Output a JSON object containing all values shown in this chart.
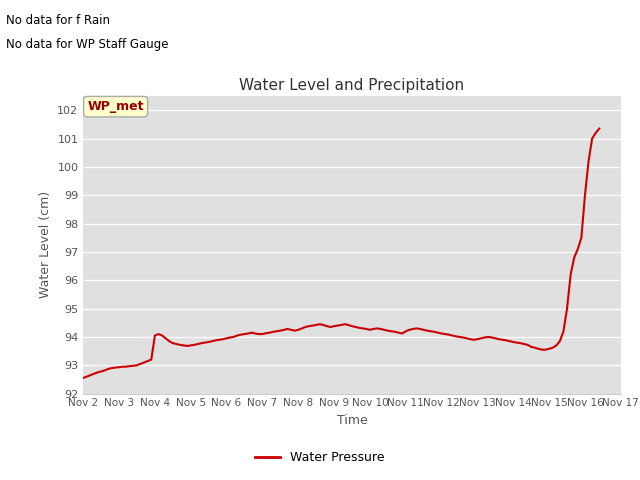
{
  "title": "Water Level and Precipitation",
  "xlabel": "Time",
  "ylabel": "Water Level (cm)",
  "ylim": [
    92.0,
    102.5
  ],
  "yticks": [
    92.0,
    93.0,
    94.0,
    95.0,
    96.0,
    97.0,
    98.0,
    99.0,
    100.0,
    101.0,
    102.0
  ],
  "line_color": "#cc0000",
  "line_width": 1.5,
  "bg_color": "#e0e0e0",
  "annotation_text1": "No data for f Rain",
  "annotation_text2": "No data for WP Staff Gauge",
  "wp_met_label": "WP_met",
  "wp_met_box_color": "#ffffcc",
  "wp_met_text_color": "#990000",
  "legend_label": "Water Pressure",
  "legend_line_color": "#cc0000",
  "xtick_labels": [
    "Nov 2",
    "Nov 3",
    "Nov 4",
    "Nov 5",
    "Nov 6",
    "Nov 7",
    "Nov 8",
    "Nov 9",
    "Nov 10",
    "Nov 11",
    "Nov 12",
    "Nov 13",
    "Nov 14",
    "Nov 15",
    "Nov 16",
    "Nov 17"
  ],
  "x_values": [
    2,
    2.1,
    2.2,
    2.3,
    2.4,
    2.5,
    2.6,
    2.7,
    2.8,
    2.9,
    3.0,
    3.1,
    3.2,
    3.3,
    3.4,
    3.5,
    3.6,
    3.7,
    3.8,
    3.9,
    4.0,
    4.1,
    4.2,
    4.3,
    4.4,
    4.5,
    4.6,
    4.7,
    4.8,
    4.9,
    5.0,
    5.1,
    5.2,
    5.3,
    5.4,
    5.5,
    5.6,
    5.7,
    5.8,
    5.9,
    6.0,
    6.1,
    6.2,
    6.3,
    6.4,
    6.5,
    6.6,
    6.7,
    6.8,
    6.9,
    7.0,
    7.1,
    7.2,
    7.3,
    7.4,
    7.5,
    7.6,
    7.7,
    7.8,
    7.9,
    8.0,
    8.1,
    8.2,
    8.3,
    8.4,
    8.5,
    8.6,
    8.7,
    8.8,
    8.9,
    9.0,
    9.1,
    9.2,
    9.3,
    9.4,
    9.5,
    9.6,
    9.7,
    9.8,
    9.9,
    10.0,
    10.1,
    10.2,
    10.3,
    10.4,
    10.5,
    10.6,
    10.7,
    10.8,
    10.9,
    11.0,
    11.1,
    11.2,
    11.3,
    11.4,
    11.5,
    11.6,
    11.7,
    11.8,
    11.9,
    12.0,
    12.1,
    12.2,
    12.3,
    12.4,
    12.5,
    12.6,
    12.7,
    12.8,
    12.9,
    13.0,
    13.1,
    13.2,
    13.3,
    13.4,
    13.5,
    13.6,
    13.7,
    13.8,
    13.9,
    14.0,
    14.1,
    14.2,
    14.3,
    14.4,
    14.5,
    14.6,
    14.7,
    14.8,
    14.9,
    15.0,
    15.1,
    15.2,
    15.3,
    15.4,
    15.5,
    15.6,
    15.7,
    15.8,
    15.9,
    16.0,
    16.1,
    16.2,
    16.3,
    16.4
  ],
  "y_values": [
    92.55,
    92.6,
    92.65,
    92.7,
    92.75,
    92.78,
    92.82,
    92.87,
    92.9,
    92.92,
    92.93,
    92.95,
    92.95,
    92.97,
    92.98,
    93.0,
    93.05,
    93.1,
    93.15,
    93.2,
    94.05,
    94.1,
    94.05,
    93.95,
    93.85,
    93.78,
    93.75,
    93.72,
    93.7,
    93.68,
    93.7,
    93.72,
    93.75,
    93.78,
    93.8,
    93.82,
    93.85,
    93.88,
    93.9,
    93.92,
    93.95,
    93.98,
    94.0,
    94.05,
    94.08,
    94.1,
    94.12,
    94.15,
    94.12,
    94.1,
    94.1,
    94.13,
    94.15,
    94.18,
    94.2,
    94.22,
    94.25,
    94.28,
    94.25,
    94.22,
    94.25,
    94.3,
    94.35,
    94.38,
    94.4,
    94.42,
    94.45,
    94.42,
    94.38,
    94.35,
    94.38,
    94.4,
    94.42,
    94.45,
    94.42,
    94.38,
    94.35,
    94.32,
    94.3,
    94.28,
    94.25,
    94.28,
    94.3,
    94.28,
    94.25,
    94.22,
    94.2,
    94.18,
    94.15,
    94.12,
    94.2,
    94.25,
    94.28,
    94.3,
    94.28,
    94.25,
    94.22,
    94.2,
    94.18,
    94.15,
    94.12,
    94.1,
    94.08,
    94.05,
    94.02,
    94.0,
    93.98,
    93.95,
    93.92,
    93.9,
    93.92,
    93.95,
    93.98,
    94.0,
    93.98,
    93.95,
    93.92,
    93.9,
    93.88,
    93.85,
    93.82,
    93.8,
    93.78,
    93.75,
    93.72,
    93.65,
    93.62,
    93.58,
    93.55,
    93.55,
    93.58,
    93.62,
    93.7,
    93.85,
    94.2,
    95.0,
    96.2,
    96.8,
    97.1,
    97.5,
    99.0,
    100.2,
    101.0,
    101.2,
    101.35
  ]
}
